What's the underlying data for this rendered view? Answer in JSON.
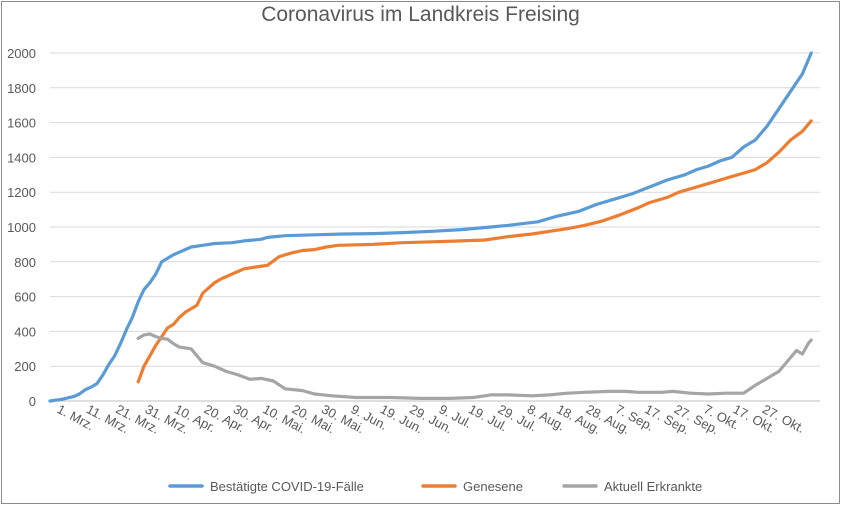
{
  "chart_data": {
    "type": "line",
    "title": "Coronavirus im Landkreis Freising",
    "xlabel": "",
    "ylabel": "",
    "ylim": [
      0,
      2000
    ],
    "y_ticks": [
      "0",
      "200",
      "400",
      "600",
      "800",
      "1000",
      "1200",
      "1400",
      "1600",
      "1800",
      "2000"
    ],
    "x_ticks": [
      "1. Mrz.",
      "11. Mrz.",
      "21. Mrz.",
      "31. Mrz.",
      "10. Apr.",
      "20. Apr.",
      "30. Apr.",
      "10. Mai.",
      "20. Mai.",
      "30. Mai.",
      "9. Jun.",
      "19. Jun.",
      "29. Jun.",
      "9. Jul.",
      "19. Jul.",
      "29. Jul.",
      "8. Aug.",
      "18. Aug.",
      "28. Aug.",
      "7. Sep.",
      "17. Sep.",
      "27. Sep.",
      "7. Okt.",
      "17. Okt.",
      "27. Okt."
    ],
    "x_unit_note": "day index from 1. Mrz. (0) to 3. Nov.",
    "grid": true,
    "legend_position": "bottom",
    "series": [
      {
        "name": "Bestätigte COVID-19-Fälle",
        "color": "#5b9bd5",
        "points": [
          [
            0,
            0
          ],
          [
            4,
            10
          ],
          [
            8,
            25
          ],
          [
            10,
            40
          ],
          [
            12,
            65
          ],
          [
            14,
            80
          ],
          [
            16,
            100
          ],
          [
            18,
            150
          ],
          [
            20,
            210
          ],
          [
            22,
            260
          ],
          [
            24,
            330
          ],
          [
            26,
            410
          ],
          [
            28,
            480
          ],
          [
            30,
            570
          ],
          [
            32,
            640
          ],
          [
            34,
            680
          ],
          [
            36,
            730
          ],
          [
            38,
            800
          ],
          [
            40,
            820
          ],
          [
            42,
            840
          ],
          [
            44,
            855
          ],
          [
            46,
            870
          ],
          [
            48,
            885
          ],
          [
            52,
            895
          ],
          [
            56,
            905
          ],
          [
            62,
            910
          ],
          [
            66,
            920
          ],
          [
            72,
            930
          ],
          [
            74,
            940
          ],
          [
            80,
            950
          ],
          [
            90,
            955
          ],
          [
            100,
            960
          ],
          [
            110,
            962
          ],
          [
            120,
            968
          ],
          [
            130,
            975
          ],
          [
            140,
            985
          ],
          [
            150,
            1000
          ],
          [
            156,
            1010
          ],
          [
            166,
            1030
          ],
          [
            172,
            1060
          ],
          [
            180,
            1090
          ],
          [
            186,
            1130
          ],
          [
            192,
            1160
          ],
          [
            198,
            1190
          ],
          [
            204,
            1230
          ],
          [
            210,
            1270
          ],
          [
            216,
            1300
          ],
          [
            220,
            1330
          ],
          [
            224,
            1350
          ],
          [
            228,
            1380
          ],
          [
            232,
            1400
          ],
          [
            236,
            1460
          ],
          [
            240,
            1500
          ],
          [
            244,
            1580
          ],
          [
            248,
            1680
          ],
          [
            252,
            1780
          ],
          [
            256,
            1880
          ],
          [
            259,
            2000
          ]
        ]
      },
      {
        "name": "Genesene",
        "color": "#ed7d31",
        "points": [
          [
            30,
            110
          ],
          [
            32,
            200
          ],
          [
            34,
            260
          ],
          [
            36,
            320
          ],
          [
            38,
            370
          ],
          [
            40,
            420
          ],
          [
            42,
            440
          ],
          [
            44,
            480
          ],
          [
            46,
            510
          ],
          [
            48,
            530
          ],
          [
            50,
            550
          ],
          [
            52,
            620
          ],
          [
            54,
            650
          ],
          [
            56,
            680
          ],
          [
            58,
            700
          ],
          [
            62,
            730
          ],
          [
            66,
            760
          ],
          [
            70,
            770
          ],
          [
            74,
            780
          ],
          [
            78,
            830
          ],
          [
            82,
            850
          ],
          [
            86,
            865
          ],
          [
            90,
            870
          ],
          [
            94,
            885
          ],
          [
            98,
            895
          ],
          [
            110,
            900
          ],
          [
            120,
            910
          ],
          [
            130,
            915
          ],
          [
            140,
            920
          ],
          [
            148,
            925
          ],
          [
            156,
            945
          ],
          [
            164,
            960
          ],
          [
            170,
            975
          ],
          [
            176,
            990
          ],
          [
            182,
            1010
          ],
          [
            188,
            1035
          ],
          [
            194,
            1070
          ],
          [
            200,
            1110
          ],
          [
            204,
            1140
          ],
          [
            210,
            1170
          ],
          [
            214,
            1200
          ],
          [
            220,
            1230
          ],
          [
            226,
            1260
          ],
          [
            232,
            1290
          ],
          [
            236,
            1310
          ],
          [
            240,
            1330
          ],
          [
            244,
            1370
          ],
          [
            248,
            1430
          ],
          [
            252,
            1500
          ],
          [
            256,
            1550
          ],
          [
            259,
            1610
          ]
        ]
      },
      {
        "name": "Aktuell Erkrankte",
        "color": "#a5a5a5",
        "points": [
          [
            30,
            360
          ],
          [
            32,
            380
          ],
          [
            34,
            385
          ],
          [
            36,
            370
          ],
          [
            38,
            360
          ],
          [
            40,
            355
          ],
          [
            42,
            330
          ],
          [
            44,
            310
          ],
          [
            48,
            300
          ],
          [
            52,
            220
          ],
          [
            56,
            200
          ],
          [
            60,
            170
          ],
          [
            64,
            150
          ],
          [
            68,
            125
          ],
          [
            72,
            130
          ],
          [
            76,
            115
          ],
          [
            80,
            70
          ],
          [
            86,
            60
          ],
          [
            90,
            40
          ],
          [
            96,
            30
          ],
          [
            104,
            20
          ],
          [
            116,
            20
          ],
          [
            126,
            15
          ],
          [
            136,
            15
          ],
          [
            144,
            20
          ],
          [
            150,
            35
          ],
          [
            156,
            35
          ],
          [
            164,
            30
          ],
          [
            170,
            35
          ],
          [
            176,
            45
          ],
          [
            182,
            50
          ],
          [
            190,
            55
          ],
          [
            196,
            55
          ],
          [
            200,
            50
          ],
          [
            208,
            50
          ],
          [
            212,
            55
          ],
          [
            218,
            45
          ],
          [
            224,
            40
          ],
          [
            230,
            45
          ],
          [
            236,
            45
          ],
          [
            240,
            90
          ],
          [
            244,
            130
          ],
          [
            248,
            170
          ],
          [
            252,
            250
          ],
          [
            254,
            290
          ],
          [
            256,
            270
          ],
          [
            258,
            330
          ],
          [
            259,
            350
          ]
        ]
      }
    ]
  }
}
